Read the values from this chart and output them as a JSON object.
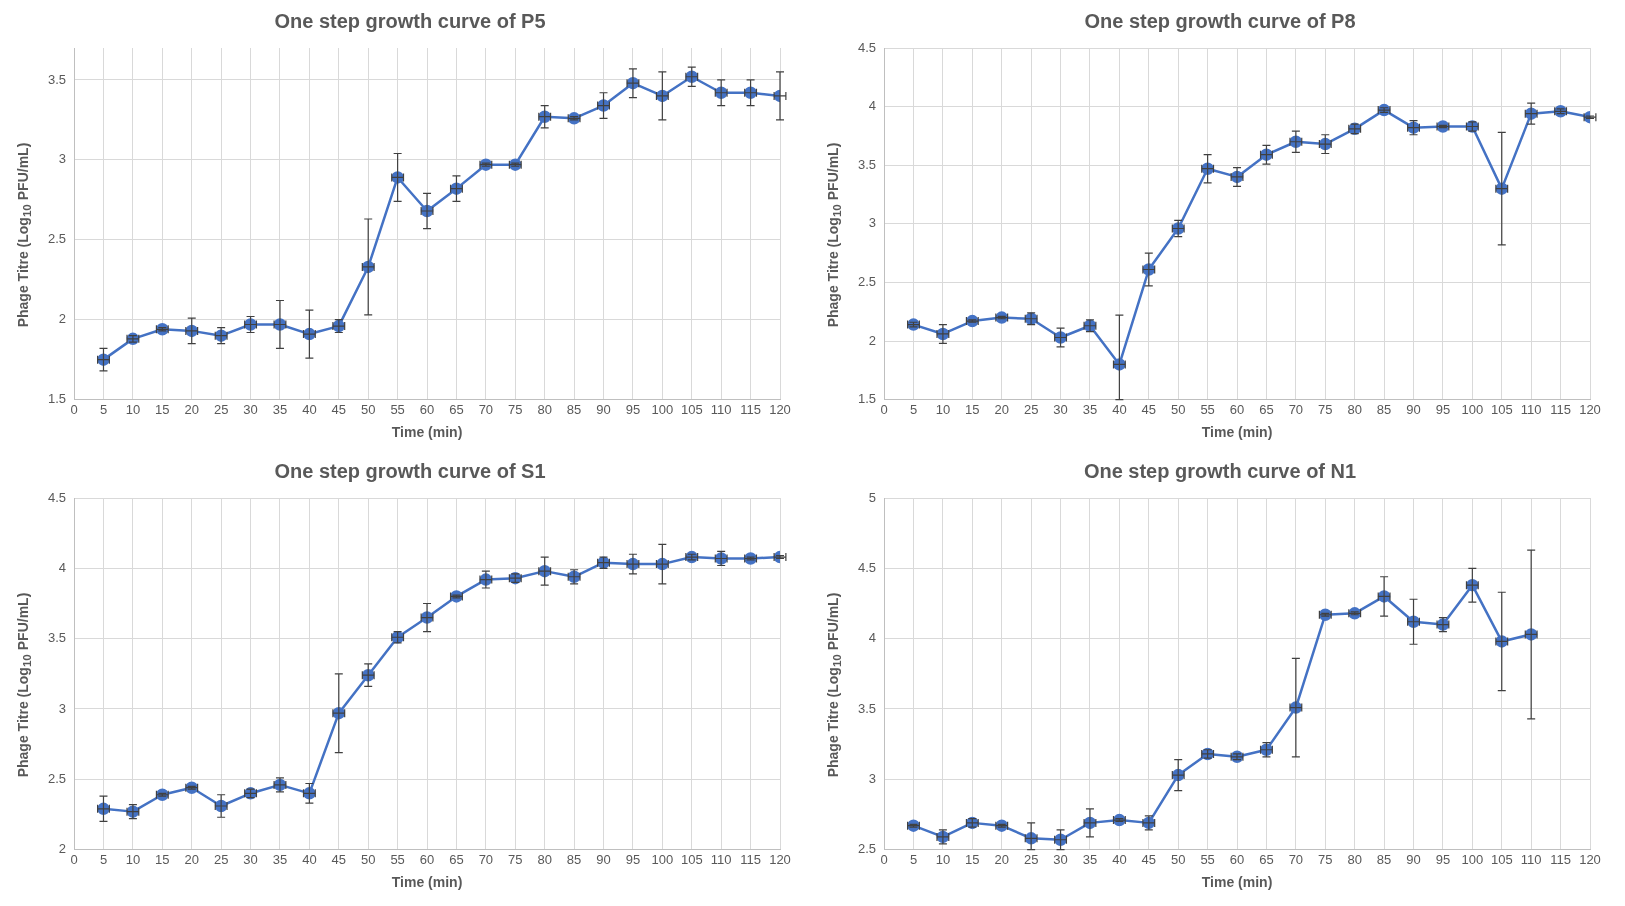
{
  "chart_data": [
    {
      "type": "line",
      "title": "One step growth curve of P5",
      "xlabel": "Time (min)",
      "ylabel": "Phage Titre (Log$_{10}$ PFU/mL)",
      "grid": true,
      "legend": false,
      "marker": "circle",
      "line_style": "solid",
      "x": [
        5,
        10,
        15,
        20,
        25,
        30,
        35,
        40,
        45,
        50,
        55,
        60,
        65,
        70,
        75,
        80,
        85,
        90,
        95,
        100,
        105,
        110,
        115,
        120
      ],
      "xlim": [
        0,
        120
      ],
      "xticks": [
        0,
        5,
        10,
        15,
        20,
        25,
        30,
        35,
        40,
        45,
        50,
        55,
        60,
        65,
        70,
        75,
        80,
        85,
        90,
        95,
        100,
        105,
        110,
        115,
        120
      ],
      "ylim": [
        1.5,
        3.7
      ],
      "yticks": [
        1.5,
        2,
        2.5,
        3,
        3.5
      ],
      "series": [
        {
          "color": "#4472c4",
          "values": [
            1.75,
            1.88,
            1.94,
            1.93,
            1.9,
            1.97,
            1.97,
            1.91,
            1.96,
            2.33,
            2.89,
            2.68,
            2.82,
            2.97,
            2.97,
            3.27,
            3.26,
            3.34,
            3.48,
            3.4,
            3.52,
            3.42,
            3.42,
            3.4
          ],
          "errors": [
            0.07,
            0.02,
            0.01,
            0.08,
            0.05,
            0.05,
            0.15,
            0.15,
            0.04,
            0.3,
            0.15,
            0.11,
            0.08,
            0.01,
            0.01,
            0.07,
            0.01,
            0.08,
            0.09,
            0.15,
            0.06,
            0.08,
            0.08,
            0.15
          ],
          "xerrors": [
            1,
            1,
            1,
            1,
            1,
            1,
            1,
            1,
            1,
            1,
            1,
            1,
            1,
            1,
            1,
            1,
            1,
            1,
            1,
            1,
            1,
            1,
            1,
            1
          ]
        }
      ]
    },
    {
      "type": "line",
      "title": "One step growth curve of P8",
      "xlabel": "Time (min)",
      "ylabel": "Phage Titre (Log$_{10}$ PFU/mL)",
      "grid": true,
      "legend": false,
      "marker": "circle",
      "line_style": "solid",
      "x": [
        5,
        10,
        15,
        20,
        25,
        30,
        35,
        40,
        45,
        50,
        55,
        60,
        65,
        70,
        75,
        80,
        85,
        90,
        95,
        100,
        105,
        110,
        115,
        120
      ],
      "xlim": [
        0,
        120
      ],
      "xticks": [
        0,
        5,
        10,
        15,
        20,
        25,
        30,
        35,
        40,
        45,
        50,
        55,
        60,
        65,
        70,
        75,
        80,
        85,
        90,
        95,
        100,
        105,
        110,
        115,
        120
      ],
      "ylim": [
        1.5,
        4.5
      ],
      "yticks": [
        1.5,
        2,
        2.5,
        3,
        3.5,
        4,
        4.5
      ],
      "series": [
        {
          "color": "#4472c4",
          "values": [
            2.14,
            2.06,
            2.17,
            2.2,
            2.19,
            2.03,
            2.13,
            1.8,
            2.61,
            2.96,
            3.47,
            3.4,
            3.59,
            3.7,
            3.68,
            3.81,
            3.97,
            3.82,
            3.83,
            3.83,
            3.3,
            3.94,
            3.96,
            3.91
          ],
          "errors": [
            0.02,
            0.08,
            0.01,
            0.01,
            0.05,
            0.08,
            0.05,
            [
              1.5,
              2.22
            ],
            0.14,
            0.07,
            0.12,
            0.08,
            0.08,
            0.09,
            0.08,
            0.04,
            0.02,
            0.06,
            0.01,
            0.04,
            0.48,
            0.09,
            0.02,
            0.01
          ],
          "xerrors": [
            1,
            1,
            1,
            1,
            1,
            1,
            1,
            1,
            1,
            1,
            1,
            1,
            1,
            1,
            1,
            1,
            1,
            1,
            1,
            1,
            1,
            1,
            1,
            1
          ]
        }
      ]
    },
    {
      "type": "line",
      "title": "One step growth curve of S1",
      "xlabel": "Time (min)",
      "ylabel": "Phage Titre (Log$_{10}$ PFU/mL)",
      "grid": true,
      "legend": false,
      "marker": "circle",
      "line_style": "solid",
      "x": [
        5,
        10,
        15,
        20,
        25,
        30,
        35,
        40,
        45,
        50,
        55,
        60,
        65,
        70,
        75,
        80,
        85,
        90,
        95,
        100,
        105,
        110,
        115,
        120
      ],
      "xlim": [
        0,
        120
      ],
      "xticks": [
        0,
        5,
        10,
        15,
        20,
        25,
        30,
        35,
        40,
        45,
        50,
        55,
        60,
        65,
        70,
        75,
        80,
        85,
        90,
        95,
        100,
        105,
        110,
        115,
        120
      ],
      "ylim": [
        2,
        4.5
      ],
      "yticks": [
        2,
        2.5,
        3,
        3.5,
        4,
        4.5
      ],
      "series": [
        {
          "color": "#4472c4",
          "values": [
            2.29,
            2.27,
            2.39,
            2.44,
            2.31,
            2.4,
            2.46,
            2.4,
            2.97,
            3.24,
            3.51,
            3.65,
            3.8,
            3.92,
            3.93,
            3.98,
            3.94,
            4.04,
            4.03,
            4.03,
            4.08,
            4.07,
            4.07,
            4.08
          ],
          "errors": [
            0.09,
            0.05,
            0.01,
            0.01,
            0.08,
            0.03,
            0.05,
            0.07,
            0.28,
            0.08,
            0.04,
            0.1,
            0.01,
            0.06,
            0.03,
            0.1,
            0.05,
            0.04,
            0.07,
            0.14,
            0.02,
            0.05,
            0.01,
            0.01
          ],
          "xerrors": [
            1,
            1,
            1,
            1,
            1,
            1,
            1,
            1,
            1,
            1,
            1,
            1,
            1,
            1,
            1,
            1,
            1,
            1,
            1,
            1,
            1,
            1,
            1,
            1
          ]
        }
      ]
    },
    {
      "type": "line",
      "title": "One step growth curve of N1",
      "xlabel": "Time (min)",
      "ylabel": "Phage Titre (Log$_{10}$ PFU/mL)",
      "grid": true,
      "legend": false,
      "marker": "circle",
      "line_style": "solid",
      "x": [
        5,
        10,
        15,
        20,
        25,
        30,
        35,
        40,
        45,
        50,
        55,
        60,
        65,
        70,
        75,
        80,
        85,
        90,
        95,
        100,
        105,
        110
      ],
      "xlim": [
        0,
        120
      ],
      "xticks": [
        0,
        5,
        10,
        15,
        20,
        25,
        30,
        35,
        40,
        45,
        50,
        55,
        60,
        65,
        70,
        75,
        80,
        85,
        90,
        95,
        100,
        105,
        110,
        115,
        120
      ],
      "ylim": [
        2.5,
        5
      ],
      "yticks": [
        2.5,
        3,
        3.5,
        4,
        4.5,
        5
      ],
      "series": [
        {
          "color": "#4472c4",
          "values": [
            2.67,
            2.59,
            2.69,
            2.67,
            2.58,
            2.57,
            2.69,
            2.71,
            2.69,
            3.03,
            3.18,
            3.16,
            3.21,
            3.51,
            4.17,
            4.18,
            4.3,
            4.12,
            4.1,
            4.38,
            3.98,
            4.03
          ],
          "errors": [
            0.01,
            0.05,
            0.03,
            0.01,
            [
              2.5,
              2.69
            ],
            0.07,
            0.1,
            0.01,
            0.05,
            0.11,
            0.03,
            0.02,
            0.05,
            0.35,
            0.01,
            0.01,
            0.14,
            0.16,
            0.05,
            0.12,
            0.35,
            0.6
          ],
          "xerrors": [
            1,
            1,
            1,
            1,
            1,
            1,
            1,
            1,
            1,
            1,
            1,
            1,
            1,
            1,
            1,
            1,
            1,
            1,
            1,
            1,
            1,
            1
          ]
        }
      ]
    }
  ]
}
